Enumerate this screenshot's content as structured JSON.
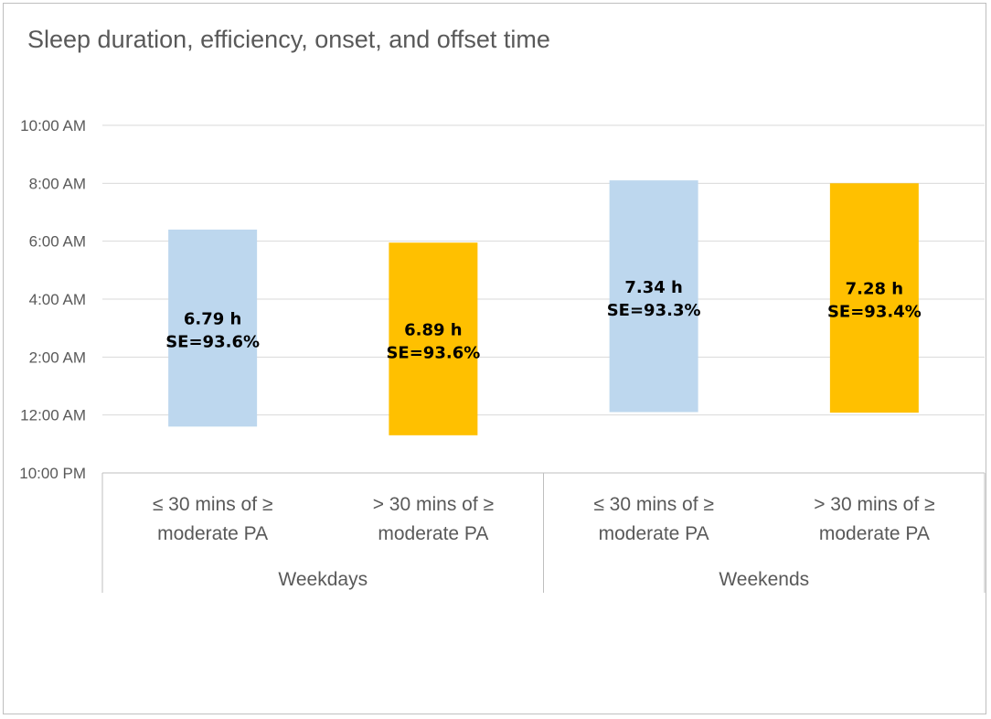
{
  "chart_data": {
    "type": "bar",
    "subtype": "floating-range",
    "title": "Sleep duration, efficiency, onset, and offset time",
    "y_tick_labels": [
      "10:00 PM",
      "12:00 AM",
      "2:00 AM",
      "4:00 AM",
      "6:00 AM",
      "8:00 AM",
      "10:00 AM"
    ],
    "ylim_hours_after_10pm": [
      0,
      12
    ],
    "groups": [
      {
        "name": "Weekdays",
        "bars": [
          {
            "category": "≤ 30 mins of ≥ moderate PA",
            "onset_hours_after_10pm": 1.6,
            "offset_hours_after_10pm": 8.4,
            "duration": "6.79 h",
            "efficiency": "SE=93.6%",
            "color": "#bdd7ee"
          },
          {
            "category": "> 30 mins of ≥ moderate PA",
            "onset_hours_after_10pm": 1.3,
            "offset_hours_after_10pm": 7.95,
            "duration": "6.89 h",
            "efficiency": "SE=93.6%",
            "color": "#ffc000"
          }
        ]
      },
      {
        "name": "Weekends",
        "bars": [
          {
            "category": "≤ 30 mins of ≥ moderate PA",
            "onset_hours_after_10pm": 2.1,
            "offset_hours_after_10pm": 10.1,
            "duration": "7.34 h",
            "efficiency": "SE=93.3%",
            "color": "#bdd7ee"
          },
          {
            "category": "> 30 mins of ≥ moderate PA",
            "onset_hours_after_10pm": 2.08,
            "offset_hours_after_10pm": 10.0,
            "duration": "7.28 h",
            "efficiency": "SE=93.4%",
            "color": "#ffc000"
          }
        ]
      }
    ],
    "grid": true,
    "legend": "none"
  }
}
